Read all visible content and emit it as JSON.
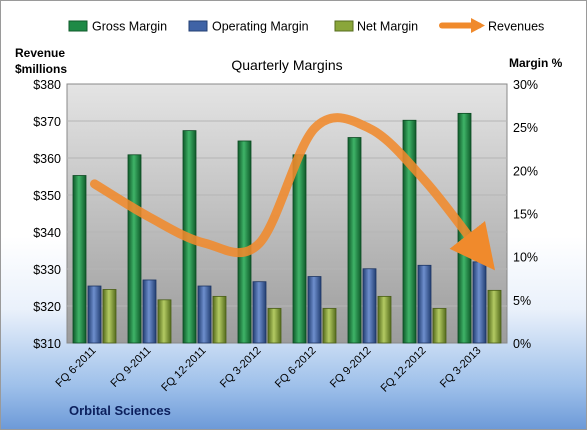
{
  "chart_data": {
    "type": "bar",
    "title": "Quarterly Margins",
    "company": "Orbital Sciences",
    "y_left_label_line1": "Revenue",
    "y_left_label_line2": "$millions",
    "y_right_label": "Margin %",
    "y_left_range": [
      310,
      380
    ],
    "y_left_ticks": [
      "$310",
      "$320",
      "$330",
      "$340",
      "$350",
      "$360",
      "$370",
      "$380"
    ],
    "y_right_range": [
      0,
      30
    ],
    "y_right_ticks": [
      "0%",
      "5%",
      "10%",
      "15%",
      "20%",
      "25%",
      "30%"
    ],
    "categories": [
      "FQ 6-2011",
      "FQ 9-2011",
      "FQ 12-2011",
      "FQ 3-2012",
      "FQ 6-2012",
      "FQ 9-2012",
      "FQ 12-2012",
      "FQ 3-2013"
    ],
    "legend_position": "top",
    "grid": true,
    "series": [
      {
        "name": "Gross Margin",
        "axis": "right",
        "kind": "bar",
        "color": "#1e8a46",
        "values": [
          19.4,
          21.8,
          24.6,
          23.4,
          21.8,
          23.8,
          25.8,
          26.6
        ]
      },
      {
        "name": "Operating Margin",
        "axis": "right",
        "kind": "bar",
        "color": "#3f63a6",
        "values": [
          6.6,
          7.3,
          6.6,
          7.1,
          7.7,
          8.6,
          9.0,
          9.4
        ]
      },
      {
        "name": "Net Margin",
        "axis": "right",
        "kind": "bar",
        "color": "#8aa63a",
        "values": [
          6.2,
          5.0,
          5.4,
          4.0,
          4.0,
          5.4,
          4.0,
          6.1
        ]
      },
      {
        "name": "Revenues",
        "axis": "left",
        "kind": "trend-arrow",
        "color": "#f08a2c",
        "values": [
          353,
          344,
          337,
          337,
          368,
          368,
          354,
          335
        ]
      }
    ]
  }
}
